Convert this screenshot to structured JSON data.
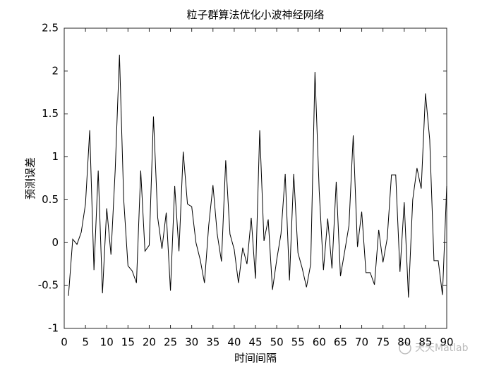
{
  "chart_data": {
    "type": "line",
    "title": "粒子群算法优化小波神经网络",
    "x_label": "时间间隔",
    "y_label": "预测误差",
    "watermark": "天天Matlab",
    "x": [
      1,
      2,
      3,
      4,
      5,
      6,
      7,
      8,
      9,
      10,
      11,
      12,
      13,
      14,
      15,
      16,
      17,
      18,
      19,
      20,
      21,
      22,
      23,
      24,
      25,
      26,
      27,
      28,
      29,
      30,
      31,
      32,
      33,
      34,
      35,
      36,
      37,
      38,
      39,
      40,
      41,
      42,
      43,
      44,
      45,
      46,
      47,
      48,
      49,
      50,
      51,
      52,
      53,
      54,
      55,
      56,
      57,
      58,
      59,
      60,
      61,
      62,
      63,
      64,
      65,
      66,
      67,
      68,
      69,
      70,
      71,
      72,
      73,
      74,
      75,
      76,
      77,
      78,
      79,
      80,
      81,
      82,
      83,
      84,
      85,
      86,
      87,
      88,
      89,
      90
    ],
    "series": [
      {
        "name": "预测误差",
        "color": "#000000",
        "values": [
          -0.62,
          0.04,
          -0.02,
          0.12,
          0.45,
          1.31,
          -0.32,
          0.84,
          -0.59,
          0.4,
          -0.14,
          0.85,
          2.19,
          0.5,
          -0.27,
          -0.33,
          -0.47,
          0.84,
          -0.1,
          -0.03,
          1.47,
          0.29,
          -0.07,
          0.35,
          -0.56,
          0.66,
          -0.1,
          1.06,
          0.45,
          0.42,
          0.0,
          -0.2,
          -0.47,
          0.2,
          0.67,
          0.1,
          -0.22,
          0.96,
          0.1,
          -0.08,
          -0.47,
          -0.06,
          -0.25,
          0.29,
          -0.42,
          1.31,
          0.02,
          0.27,
          -0.55,
          -0.2,
          0.1,
          0.8,
          -0.44,
          0.8,
          -0.12,
          -0.3,
          -0.52,
          -0.25,
          1.99,
          0.6,
          -0.32,
          0.28,
          -0.3,
          0.71,
          -0.39,
          -0.1,
          0.2,
          1.25,
          -0.05,
          0.36,
          -0.35,
          -0.35,
          -0.49,
          0.15,
          -0.23,
          0.05,
          0.79,
          0.79,
          -0.34,
          0.47,
          -0.64,
          0.5,
          0.87,
          0.63,
          1.74,
          1.2,
          -0.21,
          -0.21,
          -0.61,
          0.66
        ]
      }
    ],
    "xlim": [
      0,
      90
    ],
    "ylim": [
      -1,
      2.5
    ],
    "xticks": [
      0,
      5,
      10,
      15,
      20,
      25,
      30,
      35,
      40,
      45,
      50,
      55,
      60,
      65,
      70,
      75,
      80,
      85,
      90
    ],
    "yticks": [
      -1,
      -0.5,
      0,
      0.5,
      1,
      1.5,
      2,
      2.5
    ],
    "grid": false
  }
}
